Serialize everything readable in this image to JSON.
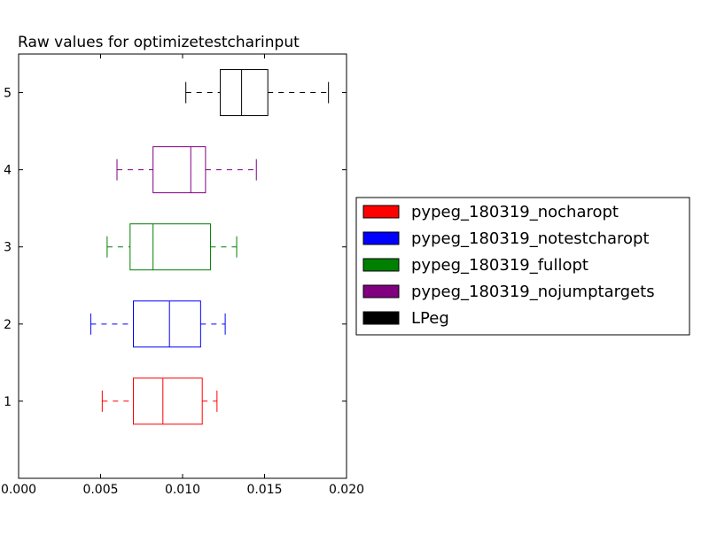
{
  "chart_data": {
    "type": "boxplot",
    "orientation": "horizontal",
    "title": "Raw values for optimizetestcharinput",
    "xlabel": "",
    "ylabel": "",
    "xlim": [
      0.0,
      0.02
    ],
    "ylim": [
      0,
      5.5
    ],
    "x_ticks": [
      0.0,
      0.005,
      0.01,
      0.015,
      0.02
    ],
    "x_tick_labels": [
      "0.000",
      "0.005",
      "0.010",
      "0.015",
      "0.020"
    ],
    "y_ticks": [
      1,
      2,
      3,
      4,
      5
    ],
    "y_tick_labels": [
      "1",
      "2",
      "3",
      "4",
      "5"
    ],
    "grid": false,
    "legend_position": "right",
    "series": [
      {
        "name": "pypeg_180319_nocharopt",
        "position": 1,
        "color": "#ff0000",
        "whisker_low": 0.0051,
        "q1": 0.007,
        "median": 0.0088,
        "q3": 0.0112,
        "whisker_high": 0.0121
      },
      {
        "name": "pypeg_180319_notestcharopt",
        "position": 2,
        "color": "#0000ff",
        "whisker_low": 0.0044,
        "q1": 0.007,
        "median": 0.0092,
        "q3": 0.0111,
        "whisker_high": 0.0126
      },
      {
        "name": "pypeg_180319_fullopt",
        "position": 3,
        "color": "#008000",
        "whisker_low": 0.0054,
        "q1": 0.0068,
        "median": 0.0082,
        "q3": 0.0117,
        "whisker_high": 0.0133
      },
      {
        "name": "pypeg_180319_nojumptargets",
        "position": 4,
        "color": "#800080",
        "whisker_low": 0.006,
        "q1": 0.0082,
        "median": 0.0105,
        "q3": 0.0114,
        "whisker_high": 0.0145
      },
      {
        "name": "LPeg",
        "position": 5,
        "color": "#000000",
        "whisker_low": 0.0102,
        "q1": 0.0123,
        "median": 0.0136,
        "q3": 0.0152,
        "whisker_high": 0.0189
      }
    ]
  }
}
